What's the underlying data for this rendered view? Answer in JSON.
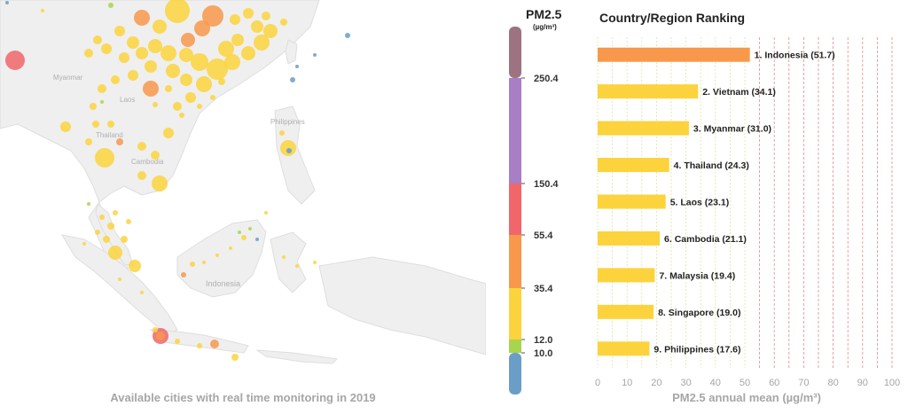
{
  "map": {
    "caption": "Available cities with real time monitoring in 2019",
    "labels": {
      "myanmar": "Myanmar",
      "laos": "Laos",
      "cambodia": "Cambodia",
      "philippines": "Philippines",
      "indonesia": "Indonesia",
      "thailand": "Thailand"
    },
    "colors": {
      "land": "#efefef",
      "border": "#d8d8d8",
      "water": "#ffffff"
    }
  },
  "legend": {
    "title": "PM2.5",
    "unit": "(µg/m³)",
    "bands": [
      {
        "from": 0,
        "to": 10.0,
        "color": "#6a9ec7"
      },
      {
        "from": 10.0,
        "to": 12.0,
        "color": "#a8d44e"
      },
      {
        "from": 12.0,
        "to": 35.4,
        "color": "#fcd33d"
      },
      {
        "from": 35.4,
        "to": 55.4,
        "color": "#f8984b"
      },
      {
        "from": 55.4,
        "to": 150.4,
        "color": "#f0666b"
      },
      {
        "from": 150.4,
        "to": 250.4,
        "color": "#a87ec4"
      },
      {
        "from": 250.4,
        "to": 500,
        "color": "#9e7381"
      }
    ],
    "tick_labels": [
      "250.4",
      "150.4",
      "55.4",
      "35.4",
      "12.0",
      "10.0"
    ]
  },
  "chart_data": {
    "type": "bar",
    "orientation": "horizontal",
    "title": "Country/Region Ranking",
    "xlabel": "PM2.5 annual mean (µg/m³)",
    "xlim": [
      0,
      100
    ],
    "xticks": [
      0,
      10,
      20,
      30,
      40,
      50,
      60,
      70,
      80,
      90,
      100
    ],
    "categories": [
      "Indonesia",
      "Vietnam",
      "Myanmar",
      "Thailand",
      "Laos",
      "Cambodia",
      "Malaysia",
      "Singapore",
      "Philippines"
    ],
    "values": [
      51.7,
      34.1,
      31.0,
      24.3,
      23.1,
      21.1,
      19.4,
      19.0,
      17.6
    ],
    "labels": [
      "1. Indonesia (51.7)",
      "2. Vietnam (34.1)",
      "3. Myanmar (31.0)",
      "4. Thailand (24.3)",
      "5. Laos (23.1)",
      "6. Cambodia (21.1)",
      "7. Malaysia (19.4)",
      "8. Singapore (19.0)",
      "9. Philippines (17.6)"
    ],
    "bar_colors": [
      "#f8984b",
      "#fcd33d",
      "#fcd33d",
      "#fcd33d",
      "#fcd33d",
      "#fcd33d",
      "#fcd33d",
      "#fcd33d",
      "#fcd33d"
    ],
    "grid": {
      "minor_color": "#e2e2a0",
      "major_color": "#e58a8a"
    }
  }
}
